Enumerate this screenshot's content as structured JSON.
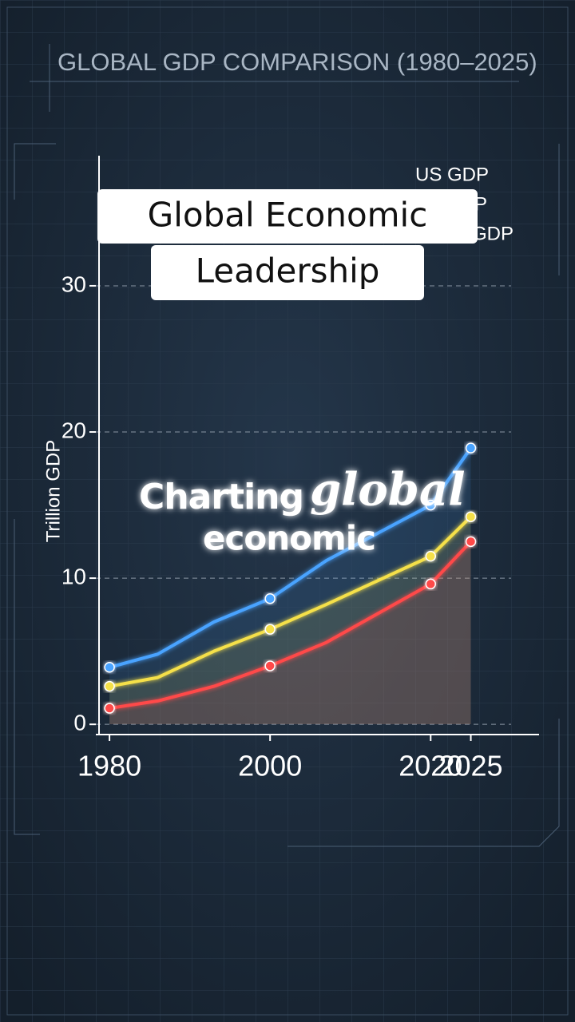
{
  "chart_data": {
    "type": "line",
    "title": "GLOBAL GDP COMPARISON (1980–2025)",
    "y_label": "Trillion GDP",
    "x": [
      1980,
      1986,
      1993,
      2000,
      2007,
      2020,
      2025
    ],
    "series": [
      {
        "name": "US GDP",
        "color": "#4aa3ff",
        "values": [
          3.9,
          4.8,
          7.0,
          8.6,
          11.2,
          15.0,
          18.9
        ]
      },
      {
        "name": "P",
        "color": "#f5e04a",
        "values": [
          2.6,
          3.2,
          5.0,
          6.5,
          8.2,
          11.5,
          14.2
        ]
      },
      {
        "name": "GDP",
        "color": "#ff4a4a",
        "values": [
          1.1,
          1.6,
          2.6,
          4.0,
          5.6,
          9.6,
          12.5
        ]
      }
    ],
    "xlim": [
      1978.3,
      2033.5
    ],
    "xticks": [
      1980,
      2000,
      2020,
      2025
    ],
    "ylim": [
      -0.7,
      38.9
    ],
    "yticks": [
      0,
      10,
      20,
      30
    ],
    "grid": true
  },
  "overlay": {
    "caption_lines": [
      "Global Economic",
      "Leadership"
    ],
    "headline": [
      "Charting",
      "global",
      "economic"
    ]
  }
}
